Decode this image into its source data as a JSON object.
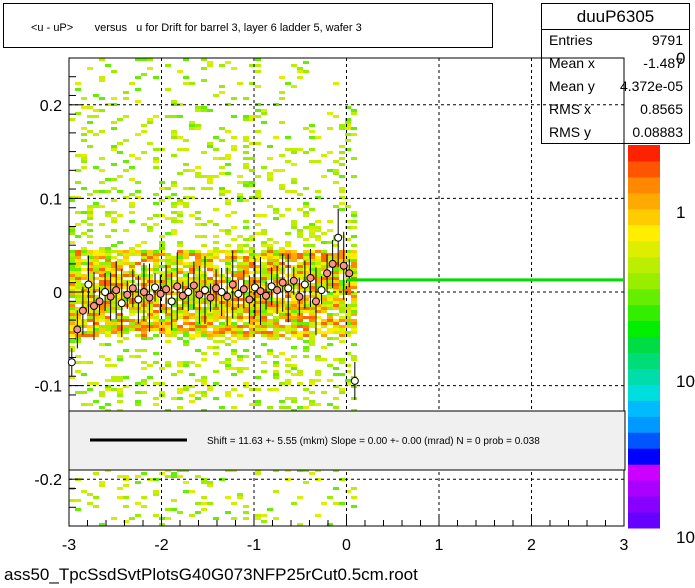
{
  "title": "<u - uP>       versus   u for Drift for barrel 3, layer 6 ladder 5, wafer 3",
  "stats": {
    "name": "duuP6305",
    "rows": [
      {
        "label": "Entries",
        "value": "9791"
      },
      {
        "label": "Mean x",
        "value": "-1.487"
      },
      {
        "label": "Mean y",
        "value": "4.372e-05"
      },
      {
        "label": "RMS x",
        "value": "0.8565"
      },
      {
        "label": "RMS y",
        "value": "0.08883"
      }
    ]
  },
  "legend": {
    "text": "Shift =    11.63 +- 5.55 (mkm) Slope =    0.00 +- 0.00 (mrad)  N = 0 prob = 0.038"
  },
  "footer": "ass50_TpcSsdSvtPlotsG40G073NFP25rCut0.5cm.root",
  "colors": {
    "fit_line": "#00dd00",
    "points_fill": "#ff9090",
    "palette": [
      "#6600ff",
      "#8800ff",
      "#aa00ff",
      "#cc00ff",
      "#0000ff",
      "#0055ff",
      "#0099ff",
      "#00bbff",
      "#00dddd",
      "#00ddaa",
      "#00dd77",
      "#00dd44",
      "#00ee00",
      "#33ee00",
      "#66ee00",
      "#99ee00",
      "#bbee00",
      "#ddee00",
      "#ffee00",
      "#ffcc00",
      "#ffaa00",
      "#ff8800",
      "#ff5500",
      "#ff2200"
    ]
  },
  "chart_data": {
    "type": "scatter",
    "title": "<u - uP>       versus   u for Drift for barrel 3, layer 6 ladder 5, wafer 3",
    "xlim": [
      -3,
      3
    ],
    "ylim": [
      -0.25,
      0.25
    ],
    "x_ticks": [
      "-3",
      "-2",
      "-1",
      "0",
      "1",
      "2",
      "3"
    ],
    "y_ticks": [
      "-0.2",
      "-0.1",
      "0",
      "0.1",
      "0.2"
    ],
    "grid": true,
    "colorbar_labels": [
      "10",
      "10",
      "1",
      "0"
    ],
    "profile_points": [
      {
        "x": -2.97,
        "y": -0.075
      },
      {
        "x": -2.91,
        "y": -0.04
      },
      {
        "x": -2.85,
        "y": -0.02
      },
      {
        "x": -2.79,
        "y": 0.008
      },
      {
        "x": -2.73,
        "y": -0.015
      },
      {
        "x": -2.67,
        "y": -0.01
      },
      {
        "x": -2.61,
        "y": 0.0
      },
      {
        "x": -2.55,
        "y": -0.005
      },
      {
        "x": -2.49,
        "y": 0.002
      },
      {
        "x": -2.43,
        "y": -0.012
      },
      {
        "x": -2.37,
        "y": -0.003
      },
      {
        "x": -2.31,
        "y": 0.004
      },
      {
        "x": -2.25,
        "y": -0.008
      },
      {
        "x": -2.19,
        "y": 0.0
      },
      {
        "x": -2.13,
        "y": -0.006
      },
      {
        "x": -2.07,
        "y": 0.005
      },
      {
        "x": -2.01,
        "y": -0.002
      },
      {
        "x": -1.95,
        "y": 0.003
      },
      {
        "x": -1.89,
        "y": -0.01
      },
      {
        "x": -1.83,
        "y": 0.006
      },
      {
        "x": -1.77,
        "y": -0.004
      },
      {
        "x": -1.71,
        "y": 0.0
      },
      {
        "x": -1.65,
        "y": 0.007
      },
      {
        "x": -1.59,
        "y": -0.003
      },
      {
        "x": -1.53,
        "y": 0.002
      },
      {
        "x": -1.47,
        "y": -0.006
      },
      {
        "x": -1.41,
        "y": 0.004
      },
      {
        "x": -1.35,
        "y": 0.0
      },
      {
        "x": -1.29,
        "y": -0.005
      },
      {
        "x": -1.23,
        "y": 0.008
      },
      {
        "x": -1.17,
        "y": -0.002
      },
      {
        "x": -1.11,
        "y": 0.003
      },
      {
        "x": -1.05,
        "y": -0.008
      },
      {
        "x": -0.99,
        "y": 0.005
      },
      {
        "x": -0.93,
        "y": 0.001
      },
      {
        "x": -0.87,
        "y": -0.004
      },
      {
        "x": -0.81,
        "y": 0.006
      },
      {
        "x": -0.75,
        "y": 0.002
      },
      {
        "x": -0.69,
        "y": 0.01
      },
      {
        "x": -0.63,
        "y": 0.004
      },
      {
        "x": -0.57,
        "y": 0.012
      },
      {
        "x": -0.51,
        "y": -0.005
      },
      {
        "x": -0.45,
        "y": 0.008
      },
      {
        "x": -0.39,
        "y": 0.015
      },
      {
        "x": -0.33,
        "y": -0.01
      },
      {
        "x": -0.27,
        "y": 0.002
      },
      {
        "x": -0.21,
        "y": 0.02
      },
      {
        "x": -0.15,
        "y": 0.03
      },
      {
        "x": -0.09,
        "y": 0.058
      },
      {
        "x": -0.03,
        "y": 0.028
      },
      {
        "x": 0.03,
        "y": 0.02
      },
      {
        "x": 0.09,
        "y": -0.095
      }
    ],
    "fit_line": {
      "x_start": 0.0,
      "x_end": 3.0,
      "y": 0.013
    }
  }
}
